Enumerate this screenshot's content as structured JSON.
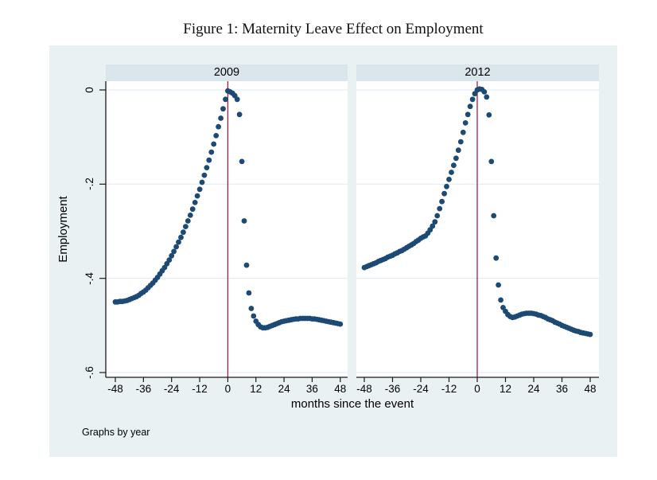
{
  "chart_data": {
    "type": "scatter",
    "title": "Figure 1: Maternity Leave Effect on Employment",
    "note": "Graphs by year",
    "xlabel": "months since the event",
    "ylabel": "Employment",
    "xlim": [
      -51,
      51
    ],
    "ylim": [
      -0.65,
      0.03
    ],
    "x_ticks": [
      -48,
      -36,
      -24,
      -12,
      0,
      12,
      24,
      36,
      48
    ],
    "y_ticks": [
      0,
      -0.2,
      -0.4,
      -0.6
    ],
    "y_tick_labels": [
      "0",
      "-.2",
      "-.4",
      "-.6"
    ],
    "grid": true,
    "legend": "none",
    "vline_x": 0,
    "colors": {
      "marker": "#1c4a74",
      "vline": "#a91e45",
      "graph_bg": "#e9f1f3",
      "header_bg": "#dbe6ec",
      "grid": "#dfeaf0",
      "axis": "#1a1a1a"
    },
    "panels": [
      {
        "title": "2009",
        "points": [
          [
            -48,
            -0.45
          ],
          [
            -47,
            -0.45
          ],
          [
            -46,
            -0.449
          ],
          [
            -45,
            -0.449
          ],
          [
            -44,
            -0.448
          ],
          [
            -43,
            -0.447
          ],
          [
            -42,
            -0.445
          ],
          [
            -41,
            -0.443
          ],
          [
            -40,
            -0.441
          ],
          [
            -39,
            -0.439
          ],
          [
            -38,
            -0.436
          ],
          [
            -37,
            -0.432
          ],
          [
            -36,
            -0.429
          ],
          [
            -35,
            -0.425
          ],
          [
            -34,
            -0.42
          ],
          [
            -33,
            -0.415
          ],
          [
            -32,
            -0.41
          ],
          [
            -31,
            -0.404
          ],
          [
            -30,
            -0.398
          ],
          [
            -29,
            -0.391
          ],
          [
            -28,
            -0.384
          ],
          [
            -27,
            -0.377
          ],
          [
            -26,
            -0.369
          ],
          [
            -25,
            -0.361
          ],
          [
            -24,
            -0.352
          ],
          [
            -23,
            -0.343
          ],
          [
            -22,
            -0.333
          ],
          [
            -21,
            -0.323
          ],
          [
            -20,
            -0.313
          ],
          [
            -19,
            -0.302
          ],
          [
            -18,
            -0.29
          ],
          [
            -17,
            -0.278
          ],
          [
            -16,
            -0.266
          ],
          [
            -15,
            -0.253
          ],
          [
            -14,
            -0.239
          ],
          [
            -13,
            -0.225
          ],
          [
            -12,
            -0.211
          ],
          [
            -11,
            -0.196
          ],
          [
            -10,
            -0.181
          ],
          [
            -9,
            -0.165
          ],
          [
            -8,
            -0.149
          ],
          [
            -7,
            -0.132
          ],
          [
            -6,
            -0.115
          ],
          [
            -5,
            -0.097
          ],
          [
            -4,
            -0.078
          ],
          [
            -3,
            -0.06
          ],
          [
            -2,
            -0.04
          ],
          [
            -1,
            -0.02
          ],
          [
            0,
            -0.002
          ],
          [
            1,
            -0.004
          ],
          [
            2,
            -0.007
          ],
          [
            3,
            -0.012
          ],
          [
            4,
            -0.02
          ],
          [
            5,
            -0.052
          ],
          [
            6,
            -0.152
          ],
          [
            7,
            -0.278
          ],
          [
            8,
            -0.372
          ],
          [
            9,
            -0.431
          ],
          [
            10,
            -0.464
          ],
          [
            11,
            -0.48
          ],
          [
            12,
            -0.491
          ],
          [
            13,
            -0.498
          ],
          [
            14,
            -0.503
          ],
          [
            15,
            -0.505
          ],
          [
            16,
            -0.505
          ],
          [
            17,
            -0.504
          ],
          [
            18,
            -0.502
          ],
          [
            19,
            -0.5
          ],
          [
            20,
            -0.498
          ],
          [
            21,
            -0.496
          ],
          [
            22,
            -0.494
          ],
          [
            23,
            -0.492
          ],
          [
            24,
            -0.491
          ],
          [
            25,
            -0.49
          ],
          [
            26,
            -0.489
          ],
          [
            27,
            -0.488
          ],
          [
            28,
            -0.487
          ],
          [
            29,
            -0.486
          ],
          [
            30,
            -0.486
          ],
          [
            31,
            -0.485
          ],
          [
            32,
            -0.485
          ],
          [
            33,
            -0.485
          ],
          [
            34,
            -0.485
          ],
          [
            35,
            -0.485
          ],
          [
            36,
            -0.486
          ],
          [
            37,
            -0.486
          ],
          [
            38,
            -0.487
          ],
          [
            39,
            -0.488
          ],
          [
            40,
            -0.489
          ],
          [
            41,
            -0.49
          ],
          [
            42,
            -0.491
          ],
          [
            43,
            -0.492
          ],
          [
            44,
            -0.493
          ],
          [
            45,
            -0.494
          ],
          [
            46,
            -0.495
          ],
          [
            47,
            -0.496
          ],
          [
            48,
            -0.497
          ]
        ]
      },
      {
        "title": "2012",
        "points": [
          [
            -48,
            -0.377
          ],
          [
            -47,
            -0.375
          ],
          [
            -46,
            -0.373
          ],
          [
            -45,
            -0.371
          ],
          [
            -44,
            -0.369
          ],
          [
            -43,
            -0.367
          ],
          [
            -42,
            -0.364
          ],
          [
            -41,
            -0.362
          ],
          [
            -40,
            -0.36
          ],
          [
            -39,
            -0.358
          ],
          [
            -38,
            -0.355
          ],
          [
            -37,
            -0.353
          ],
          [
            -36,
            -0.351
          ],
          [
            -35,
            -0.348
          ],
          [
            -34,
            -0.346
          ],
          [
            -33,
            -0.343
          ],
          [
            -32,
            -0.341
          ],
          [
            -31,
            -0.338
          ],
          [
            -30,
            -0.335
          ],
          [
            -29,
            -0.332
          ],
          [
            -28,
            -0.329
          ],
          [
            -27,
            -0.326
          ],
          [
            -26,
            -0.322
          ],
          [
            -25,
            -0.319
          ],
          [
            -24,
            -0.315
          ],
          [
            -23,
            -0.312
          ],
          [
            -22,
            -0.31
          ],
          [
            -21,
            -0.304
          ],
          [
            -20,
            -0.297
          ],
          [
            -19,
            -0.289
          ],
          [
            -18,
            -0.28
          ],
          [
            -17,
            -0.267
          ],
          [
            -16,
            -0.252
          ],
          [
            -15,
            -0.237
          ],
          [
            -14,
            -0.22
          ],
          [
            -13,
            -0.205
          ],
          [
            -12,
            -0.19
          ],
          [
            -11,
            -0.175
          ],
          [
            -10,
            -0.16
          ],
          [
            -9,
            -0.145
          ],
          [
            -8,
            -0.128
          ],
          [
            -7,
            -0.11
          ],
          [
            -6,
            -0.09
          ],
          [
            -5,
            -0.07
          ],
          [
            -4,
            -0.052
          ],
          [
            -3,
            -0.035
          ],
          [
            -2,
            -0.02
          ],
          [
            -1,
            -0.008
          ],
          [
            0,
            0.0
          ],
          [
            1,
            0.002
          ],
          [
            2,
            0.001
          ],
          [
            3,
            -0.004
          ],
          [
            4,
            -0.015
          ],
          [
            5,
            -0.053
          ],
          [
            6,
            -0.152
          ],
          [
            7,
            -0.267
          ],
          [
            8,
            -0.357
          ],
          [
            9,
            -0.414
          ],
          [
            10,
            -0.446
          ],
          [
            11,
            -0.462
          ],
          [
            12,
            -0.47
          ],
          [
            13,
            -0.477
          ],
          [
            14,
            -0.481
          ],
          [
            15,
            -0.483
          ],
          [
            16,
            -0.482
          ],
          [
            17,
            -0.48
          ],
          [
            18,
            -0.478
          ],
          [
            19,
            -0.476
          ],
          [
            20,
            -0.475
          ],
          [
            21,
            -0.474
          ],
          [
            22,
            -0.474
          ],
          [
            23,
            -0.474
          ],
          [
            24,
            -0.475
          ],
          [
            25,
            -0.476
          ],
          [
            26,
            -0.478
          ],
          [
            27,
            -0.479
          ],
          [
            28,
            -0.481
          ],
          [
            29,
            -0.483
          ],
          [
            30,
            -0.486
          ],
          [
            31,
            -0.488
          ],
          [
            32,
            -0.49
          ],
          [
            33,
            -0.493
          ],
          [
            34,
            -0.495
          ],
          [
            35,
            -0.497
          ],
          [
            36,
            -0.5
          ],
          [
            37,
            -0.502
          ],
          [
            38,
            -0.504
          ],
          [
            39,
            -0.506
          ],
          [
            40,
            -0.508
          ],
          [
            41,
            -0.51
          ],
          [
            42,
            -0.512
          ],
          [
            43,
            -0.513
          ],
          [
            44,
            -0.515
          ],
          [
            45,
            -0.516
          ],
          [
            46,
            -0.517
          ],
          [
            47,
            -0.518
          ],
          [
            48,
            -0.519
          ]
        ]
      }
    ]
  }
}
